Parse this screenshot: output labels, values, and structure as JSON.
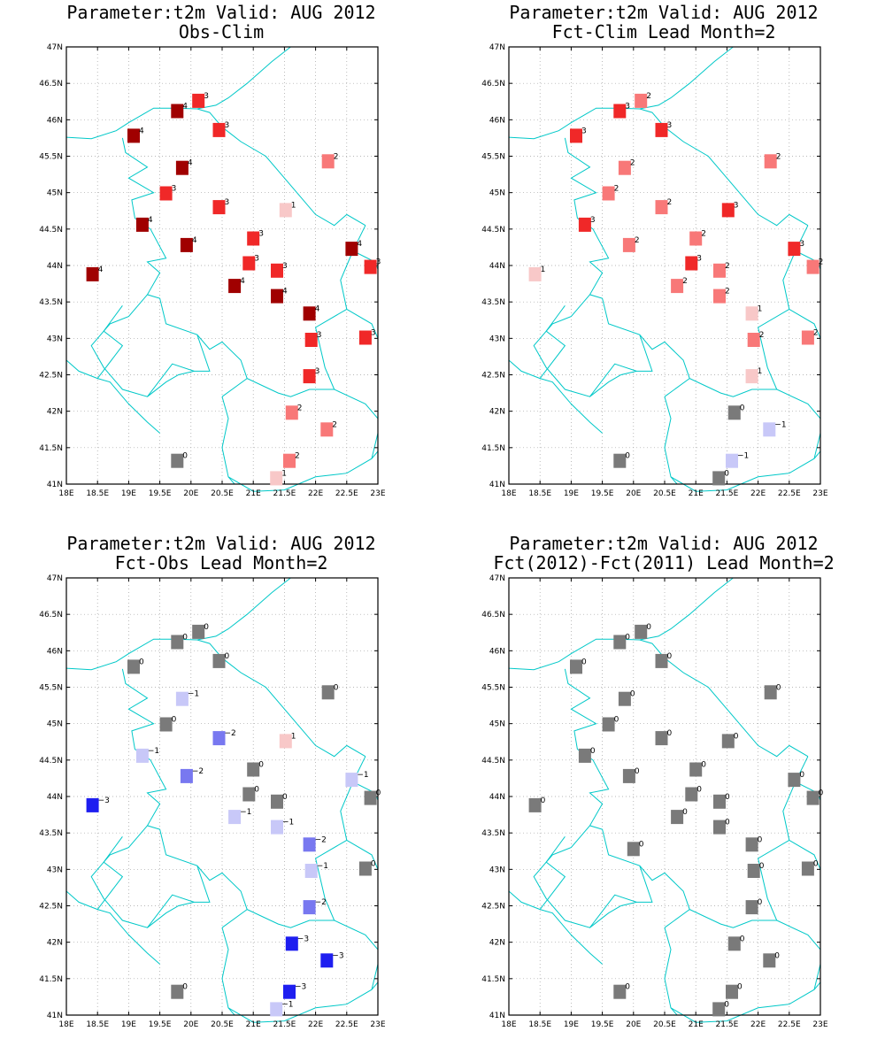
{
  "colors": {
    "border": "#00c8c8",
    "grid": "#a0a0a0",
    "scale": {
      "-3": "#1e1ef0",
      "-2": "#7878f0",
      "-1": "#c8c8f8",
      "0": "#7a7a7a",
      "1": "#f8c8c8",
      "2": "#f87878",
      "3": "#f02828",
      "4": "#a00000"
    }
  },
  "axis": {
    "x_ticks": [
      "18E",
      "18.5E",
      "19E",
      "19.5E",
      "20E",
      "20.5E",
      "21E",
      "21.5E",
      "22E",
      "22.5E",
      "23E"
    ],
    "y_ticks": [
      "41N",
      "41.5N",
      "42N",
      "42.5N",
      "43N",
      "43.5N",
      "44N",
      "44.5N",
      "45N",
      "45.5N",
      "46N",
      "46.5N",
      "47N"
    ],
    "lon_range": [
      18,
      23
    ],
    "lat_range": [
      41,
      47
    ]
  },
  "chart_data": [
    {
      "type": "scatter",
      "title": "Parameter:t2m Valid: AUG 2012",
      "subtitle": "Obs-Clim",
      "xlim": [
        18,
        23
      ],
      "ylim": [
        41,
        47
      ],
      "points": [
        {
          "lon": 19.08,
          "lat": 45.78,
          "v": 4
        },
        {
          "lon": 19.78,
          "lat": 46.12,
          "v": 4
        },
        {
          "lon": 20.12,
          "lat": 46.26,
          "v": 3
        },
        {
          "lon": 20.45,
          "lat": 45.86,
          "v": 3
        },
        {
          "lon": 22.2,
          "lat": 45.43,
          "v": 2
        },
        {
          "lon": 19.86,
          "lat": 45.34,
          "v": 4
        },
        {
          "lon": 19.6,
          "lat": 44.99,
          "v": 3
        },
        {
          "lon": 20.45,
          "lat": 44.8,
          "v": 3
        },
        {
          "lon": 21.52,
          "lat": 44.76,
          "v": 1
        },
        {
          "lon": 19.22,
          "lat": 44.56,
          "v": 4
        },
        {
          "lon": 21.0,
          "lat": 44.37,
          "v": 3
        },
        {
          "lon": 19.93,
          "lat": 44.28,
          "v": 4
        },
        {
          "lon": 22.58,
          "lat": 44.23,
          "v": 4
        },
        {
          "lon": 20.93,
          "lat": 44.03,
          "v": 3
        },
        {
          "lon": 21.38,
          "lat": 43.93,
          "v": 3
        },
        {
          "lon": 22.88,
          "lat": 43.98,
          "v": 3
        },
        {
          "lon": 18.42,
          "lat": 43.88,
          "v": 4
        },
        {
          "lon": 20.7,
          "lat": 43.72,
          "v": 4
        },
        {
          "lon": 21.38,
          "lat": 43.58,
          "v": 4
        },
        {
          "lon": 21.9,
          "lat": 43.34,
          "v": 4
        },
        {
          "lon": 21.93,
          "lat": 42.98,
          "v": 3
        },
        {
          "lon": 22.8,
          "lat": 43.01,
          "v": 3
        },
        {
          "lon": 21.9,
          "lat": 42.48,
          "v": 3
        },
        {
          "lon": 21.62,
          "lat": 41.98,
          "v": 2
        },
        {
          "lon": 22.18,
          "lat": 41.75,
          "v": 2
        },
        {
          "lon": 21.58,
          "lat": 41.32,
          "v": 2
        },
        {
          "lon": 19.78,
          "lat": 41.32,
          "v": 0
        },
        {
          "lon": 21.37,
          "lat": 41.08,
          "v": 1
        }
      ]
    },
    {
      "type": "scatter",
      "title": "Parameter:t2m Valid: AUG 2012",
      "subtitle": "Fct-Clim Lead Month=2",
      "xlim": [
        18,
        23
      ],
      "ylim": [
        41,
        47
      ],
      "points": [
        {
          "lon": 19.08,
          "lat": 45.78,
          "v": 3
        },
        {
          "lon": 19.78,
          "lat": 46.12,
          "v": 3
        },
        {
          "lon": 20.12,
          "lat": 46.26,
          "v": 2
        },
        {
          "lon": 20.45,
          "lat": 45.86,
          "v": 3
        },
        {
          "lon": 22.2,
          "lat": 45.43,
          "v": 2
        },
        {
          "lon": 19.86,
          "lat": 45.34,
          "v": 2
        },
        {
          "lon": 19.6,
          "lat": 44.99,
          "v": 2
        },
        {
          "lon": 20.45,
          "lat": 44.8,
          "v": 2
        },
        {
          "lon": 21.52,
          "lat": 44.76,
          "v": 3
        },
        {
          "lon": 19.22,
          "lat": 44.56,
          "v": 3
        },
        {
          "lon": 21.0,
          "lat": 44.37,
          "v": 2
        },
        {
          "lon": 19.93,
          "lat": 44.28,
          "v": 2
        },
        {
          "lon": 22.58,
          "lat": 44.23,
          "v": 3
        },
        {
          "lon": 20.93,
          "lat": 44.03,
          "v": 3
        },
        {
          "lon": 21.38,
          "lat": 43.93,
          "v": 2
        },
        {
          "lon": 22.88,
          "lat": 43.98,
          "v": 2
        },
        {
          "lon": 18.42,
          "lat": 43.88,
          "v": 1
        },
        {
          "lon": 20.7,
          "lat": 43.72,
          "v": 2
        },
        {
          "lon": 21.38,
          "lat": 43.58,
          "v": 2
        },
        {
          "lon": 21.9,
          "lat": 43.34,
          "v": 1
        },
        {
          "lon": 21.93,
          "lat": 42.98,
          "v": 2
        },
        {
          "lon": 22.8,
          "lat": 43.01,
          "v": 2
        },
        {
          "lon": 21.9,
          "lat": 42.48,
          "v": 1
        },
        {
          "lon": 21.62,
          "lat": 41.98,
          "v": 0
        },
        {
          "lon": 22.18,
          "lat": 41.75,
          "v": -1
        },
        {
          "lon": 21.58,
          "lat": 41.32,
          "v": -1
        },
        {
          "lon": 19.78,
          "lat": 41.32,
          "v": 0
        },
        {
          "lon": 21.37,
          "lat": 41.08,
          "v": 0
        }
      ]
    },
    {
      "type": "scatter",
      "title": "Parameter:t2m Valid: AUG 2012",
      "subtitle": "Fct-Obs Lead Month=2",
      "xlim": [
        18,
        23
      ],
      "ylim": [
        41,
        47
      ],
      "points": [
        {
          "lon": 19.08,
          "lat": 45.78,
          "v": 0
        },
        {
          "lon": 19.78,
          "lat": 46.12,
          "v": 0
        },
        {
          "lon": 20.12,
          "lat": 46.26,
          "v": 0
        },
        {
          "lon": 20.45,
          "lat": 45.86,
          "v": 0
        },
        {
          "lon": 22.2,
          "lat": 45.43,
          "v": 0
        },
        {
          "lon": 19.86,
          "lat": 45.34,
          "v": -1
        },
        {
          "lon": 19.6,
          "lat": 44.99,
          "v": 0
        },
        {
          "lon": 20.45,
          "lat": 44.8,
          "v": -2
        },
        {
          "lon": 21.52,
          "lat": 44.76,
          "v": 1
        },
        {
          "lon": 19.22,
          "lat": 44.56,
          "v": -1
        },
        {
          "lon": 21.0,
          "lat": 44.37,
          "v": 0
        },
        {
          "lon": 19.93,
          "lat": 44.28,
          "v": -2
        },
        {
          "lon": 22.58,
          "lat": 44.23,
          "v": -1
        },
        {
          "lon": 20.93,
          "lat": 44.03,
          "v": 0
        },
        {
          "lon": 21.38,
          "lat": 43.93,
          "v": 0
        },
        {
          "lon": 22.88,
          "lat": 43.98,
          "v": 0
        },
        {
          "lon": 18.42,
          "lat": 43.88,
          "v": -3
        },
        {
          "lon": 20.7,
          "lat": 43.72,
          "v": -1
        },
        {
          "lon": 21.38,
          "lat": 43.58,
          "v": -1
        },
        {
          "lon": 21.9,
          "lat": 43.34,
          "v": -2
        },
        {
          "lon": 21.93,
          "lat": 42.98,
          "v": -1
        },
        {
          "lon": 22.8,
          "lat": 43.01,
          "v": 0
        },
        {
          "lon": 21.9,
          "lat": 42.48,
          "v": -2
        },
        {
          "lon": 21.62,
          "lat": 41.98,
          "v": -3
        },
        {
          "lon": 22.18,
          "lat": 41.75,
          "v": -3
        },
        {
          "lon": 21.58,
          "lat": 41.32,
          "v": -3
        },
        {
          "lon": 19.78,
          "lat": 41.32,
          "v": 0
        },
        {
          "lon": 21.37,
          "lat": 41.08,
          "v": -1
        }
      ]
    },
    {
      "type": "scatter",
      "title": "Parameter:t2m Valid: AUG 2012",
      "subtitle": "Fct(2012)-Fct(2011) Lead Month=2",
      "xlim": [
        18,
        23
      ],
      "ylim": [
        41,
        47
      ],
      "points": [
        {
          "lon": 19.08,
          "lat": 45.78,
          "v": 0
        },
        {
          "lon": 19.78,
          "lat": 46.12,
          "v": 0
        },
        {
          "lon": 20.12,
          "lat": 46.26,
          "v": 0
        },
        {
          "lon": 20.45,
          "lat": 45.86,
          "v": 0
        },
        {
          "lon": 22.2,
          "lat": 45.43,
          "v": 0
        },
        {
          "lon": 19.86,
          "lat": 45.34,
          "v": 0
        },
        {
          "lon": 19.6,
          "lat": 44.99,
          "v": 0
        },
        {
          "lon": 20.45,
          "lat": 44.8,
          "v": 0
        },
        {
          "lon": 21.52,
          "lat": 44.76,
          "v": 0
        },
        {
          "lon": 19.22,
          "lat": 44.56,
          "v": 0
        },
        {
          "lon": 21.0,
          "lat": 44.37,
          "v": 0
        },
        {
          "lon": 19.93,
          "lat": 44.28,
          "v": 0
        },
        {
          "lon": 22.58,
          "lat": 44.23,
          "v": 0
        },
        {
          "lon": 20.93,
          "lat": 44.03,
          "v": 0
        },
        {
          "lon": 21.38,
          "lat": 43.93,
          "v": 0
        },
        {
          "lon": 22.88,
          "lat": 43.98,
          "v": 0
        },
        {
          "lon": 18.42,
          "lat": 43.88,
          "v": 0
        },
        {
          "lon": 20.7,
          "lat": 43.72,
          "v": 0
        },
        {
          "lon": 21.38,
          "lat": 43.58,
          "v": 0
        },
        {
          "lon": 21.9,
          "lat": 43.34,
          "v": 0
        },
        {
          "lon": 21.93,
          "lat": 42.98,
          "v": 0
        },
        {
          "lon": 22.8,
          "lat": 43.01,
          "v": 0
        },
        {
          "lon": 21.9,
          "lat": 42.48,
          "v": 0
        },
        {
          "lon": 21.62,
          "lat": 41.98,
          "v": 0
        },
        {
          "lon": 22.18,
          "lat": 41.75,
          "v": 0
        },
        {
          "lon": 21.58,
          "lat": 41.32,
          "v": 0
        },
        {
          "lon": 20.0,
          "lat": 43.28,
          "v": 0
        },
        {
          "lon": 19.78,
          "lat": 41.32,
          "v": 0
        },
        {
          "lon": 21.37,
          "lat": 41.08,
          "v": 0
        }
      ]
    }
  ]
}
